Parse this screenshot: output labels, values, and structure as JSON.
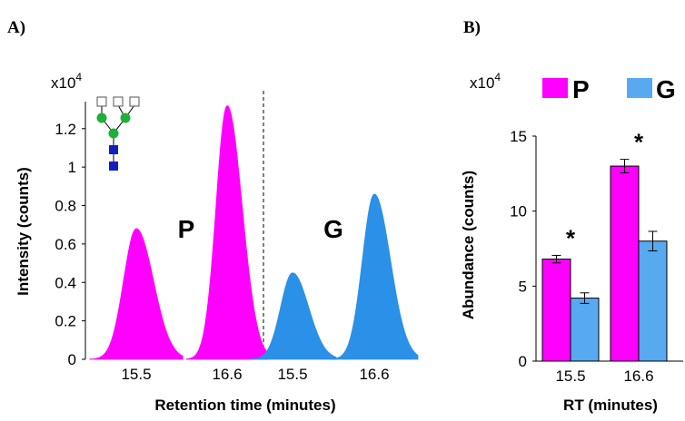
{
  "chart_data": [
    {
      "panel": "A)",
      "type": "area",
      "multiplier": "x10",
      "multiplier_exp": "4",
      "ylabel": "Intensity (counts)",
      "xlabel": "Retention time (minutes)",
      "ylim": [
        0,
        1.35
      ],
      "yticks": [
        "0",
        "0.2",
        "0.4",
        "0.6",
        "0.8",
        "1",
        "1.2"
      ],
      "xticks": [
        "15.5",
        "16.6",
        "15.5",
        "16.6"
      ],
      "groups": [
        {
          "label": "P",
          "color": "#ff00ff",
          "peaks": [
            {
              "rt": "15.5",
              "height": 0.68
            },
            {
              "rt": "16.6",
              "height": 1.32
            }
          ]
        },
        {
          "label": "G",
          "color": "#2b90e8",
          "peaks": [
            {
              "rt": "15.5",
              "height": 0.45
            },
            {
              "rt": "16.6",
              "height": 0.86
            }
          ]
        }
      ],
      "glycan_icon": "glycan-structure-icon"
    },
    {
      "panel": "B)",
      "type": "bar",
      "multiplier": "x10",
      "multiplier_exp": "4",
      "ylabel": "Abundance (counts)",
      "xlabel": "RT (minutes)",
      "ylim": [
        0,
        15
      ],
      "yticks": [
        "0",
        "5",
        "10",
        "15"
      ],
      "categories": [
        "15.5",
        "16.6"
      ],
      "series": [
        {
          "name": "P",
          "color": "#ff00ff",
          "values": [
            6.8,
            13.0
          ],
          "errors": [
            0.25,
            0.45
          ]
        },
        {
          "name": "G",
          "color": "#57a9f0",
          "values": [
            4.2,
            8.0
          ],
          "errors": [
            0.35,
            0.65
          ]
        }
      ],
      "annotations": [
        "*",
        "*"
      ],
      "legend_position": "top"
    }
  ]
}
